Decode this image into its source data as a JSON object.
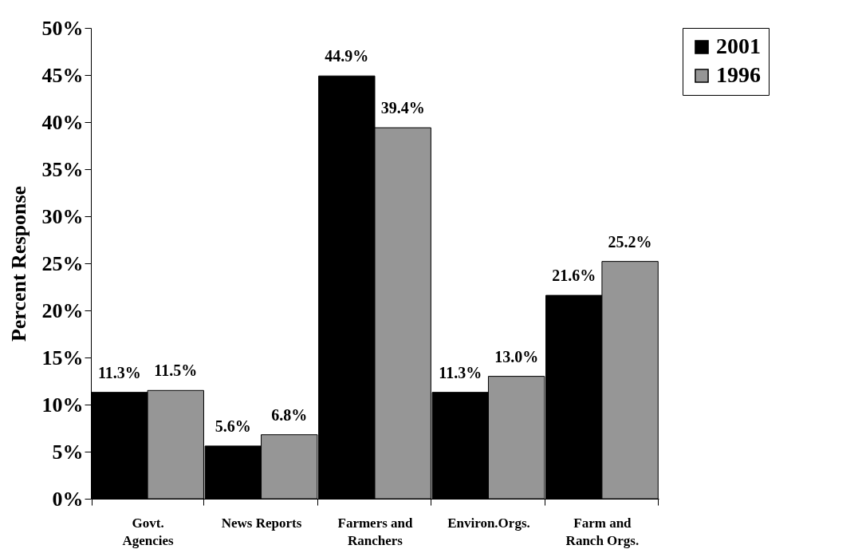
{
  "chart_data": {
    "type": "bar",
    "ylabel": "Percent Response",
    "categories": [
      "Govt. Agencies",
      "News Reports",
      "Farmers and Ranchers",
      "Environ.Orgs.",
      "Farm and Ranch Orgs."
    ],
    "series": [
      {
        "name": "2001",
        "color": "#000000",
        "values": [
          11.3,
          5.6,
          44.9,
          11.3,
          21.6
        ],
        "value_labels": [
          "11.3%",
          "5.6%",
          "44.9%",
          "11.3%",
          "21.6%"
        ]
      },
      {
        "name": "1996",
        "color": "#969696",
        "values": [
          11.5,
          6.8,
          39.4,
          13.0,
          25.2
        ],
        "value_labels": [
          "11.5%",
          "6.8%",
          "39.4%",
          "13.0%",
          "25.2%"
        ]
      }
    ],
    "ylim": [
      0,
      50
    ],
    "yticks": [
      {
        "value": 0,
        "label": "0%"
      },
      {
        "value": 5,
        "label": "5%"
      },
      {
        "value": 10,
        "label": "10%"
      },
      {
        "value": 15,
        "label": "15%"
      },
      {
        "value": 20,
        "label": "20%"
      },
      {
        "value": 25,
        "label": "25%"
      },
      {
        "value": 30,
        "label": "30%"
      },
      {
        "value": 35,
        "label": "35%"
      },
      {
        "value": 40,
        "label": "40%"
      },
      {
        "value": 45,
        "label": "45%"
      },
      {
        "value": 50,
        "label": "50%"
      }
    ],
    "grid": false,
    "legend": "right"
  }
}
